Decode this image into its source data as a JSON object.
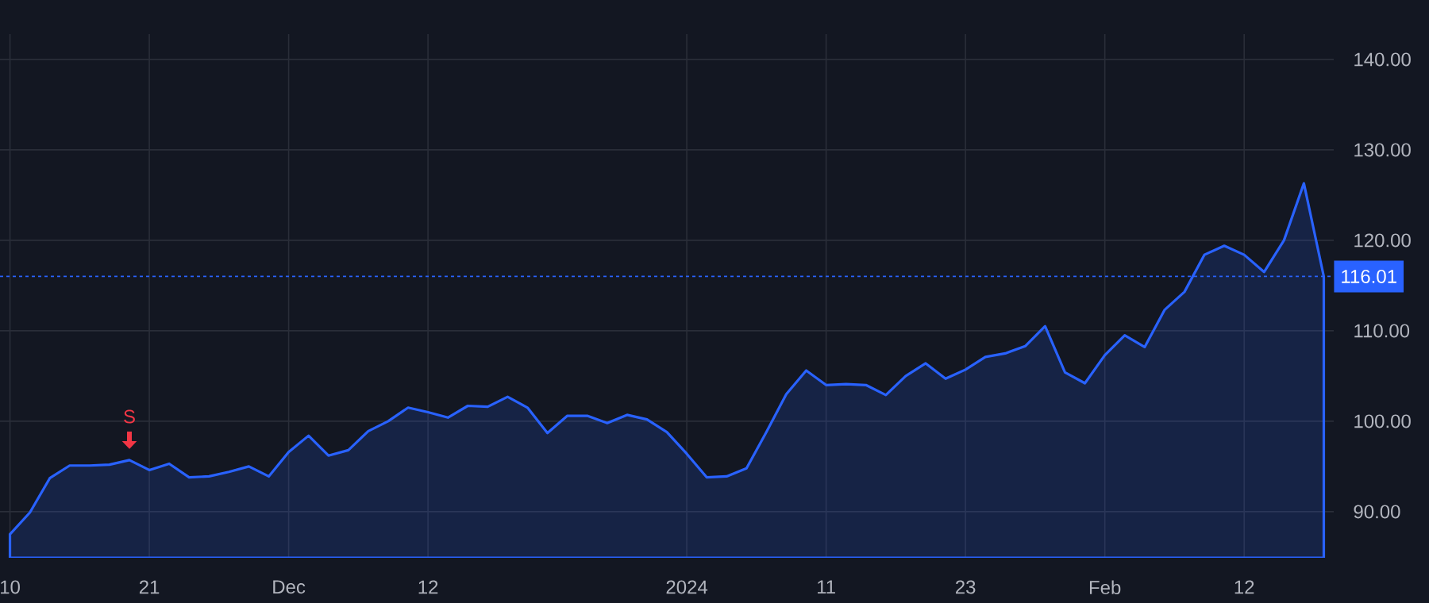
{
  "chart_data": {
    "type": "area",
    "categories": [
      "10",
      null,
      null,
      null,
      null,
      null,
      null,
      "21",
      null,
      null,
      null,
      null,
      null,
      null,
      "Dec",
      null,
      null,
      null,
      null,
      null,
      null,
      "12",
      null,
      null,
      null,
      null,
      null,
      null,
      null,
      null,
      null,
      null,
      null,
      null,
      "2024",
      null,
      null,
      null,
      null,
      null,
      null,
      "11",
      null,
      null,
      null,
      null,
      null,
      null,
      "23",
      null,
      null,
      null,
      null,
      null,
      null,
      "Feb",
      null,
      null,
      null,
      null,
      null,
      null,
      "12",
      null,
      null,
      null,
      null
    ],
    "series": [
      {
        "color": "#2962ff",
        "values": [
          87.5,
          89.9,
          93.7,
          95.1,
          95.1,
          95.2,
          95.7,
          94.6,
          95.3,
          93.8,
          93.9,
          94.4,
          95.0,
          93.9,
          96.6,
          98.4,
          96.2,
          96.8,
          98.9,
          100.0,
          101.5,
          101.0,
          100.4,
          101.7,
          101.6,
          102.7,
          101.5,
          98.7,
          100.6,
          100.6,
          99.8,
          100.7,
          100.2,
          98.8,
          96.4,
          93.8,
          93.9,
          94.8,
          98.8,
          103.0,
          105.6,
          104.0,
          104.1,
          104.0,
          102.9,
          105.0,
          106.4,
          104.7,
          105.7,
          107.1,
          107.5,
          108.3,
          110.5,
          105.4,
          104.2,
          107.3,
          109.5,
          108.2,
          112.3,
          114.3,
          118.4,
          119.4,
          118.4,
          116.5,
          120.0,
          126.3,
          116.0
        ]
      }
    ],
    "ylim": [
      84.9,
      142.8
    ],
    "yticks": [
      {
        "value": 90,
        "label": "90.00"
      },
      {
        "value": 100,
        "label": "100.00"
      },
      {
        "value": 110,
        "label": "110.00"
      },
      {
        "value": 120,
        "label": "120.00"
      },
      {
        "value": 130,
        "label": "130.00"
      },
      {
        "value": 140,
        "label": "140.00"
      }
    ],
    "grid": true,
    "ref_lines": [
      {
        "axis": "y",
        "value": 116.01,
        "label": "116.01",
        "color": "#2962ff",
        "line_style": "dotted"
      }
    ],
    "annotations": [
      {
        "text": "S",
        "y": 95.7
      }
    ]
  }
}
